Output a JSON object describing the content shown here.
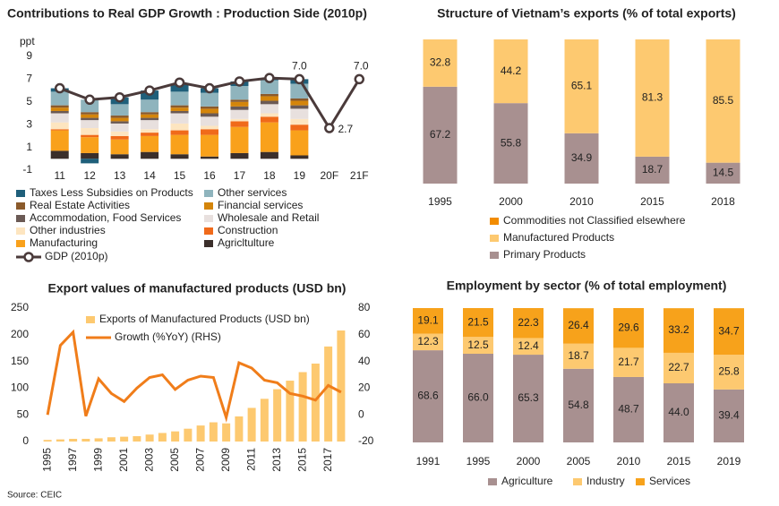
{
  "chart_data": [
    {
      "type": "bar",
      "stacked": true,
      "title": "Contributions to Real GDP Growth : Production Side (2010p)",
      "y_label": "ppt",
      "categories": [
        "11",
        "12",
        "13",
        "14",
        "15",
        "16",
        "17",
        "18",
        "19",
        "20F",
        "21F"
      ],
      "ylim": [
        -1,
        9
      ],
      "yticks": [
        -1,
        1,
        3,
        5,
        7,
        9
      ],
      "series": [
        {
          "name": "Agricltulture",
          "color": "#3b2f2b",
          "values": [
            0.7,
            0.5,
            0.4,
            0.6,
            0.4,
            0.2,
            0.5,
            0.6,
            0.3,
            null,
            null
          ]
        },
        {
          "name": "Manufacturing",
          "color": "#f9a11b",
          "values": [
            1.8,
            1.4,
            1.3,
            1.4,
            1.7,
            1.9,
            2.3,
            2.6,
            2.2,
            null,
            null
          ]
        },
        {
          "name": "Construction",
          "color": "#f06a1a",
          "values": [
            0.1,
            0.2,
            0.3,
            0.3,
            0.4,
            0.5,
            0.5,
            0.5,
            0.5,
            null,
            null
          ]
        },
        {
          "name": "Other industries",
          "color": "#fde5c0",
          "values": [
            0.6,
            0.6,
            0.4,
            0.3,
            0.6,
            0.3,
            0.2,
            0.3,
            0.5,
            null,
            null
          ]
        },
        {
          "name": "Wholesale and Retail",
          "color": "#e8e0de",
          "values": [
            0.8,
            0.7,
            0.7,
            0.8,
            0.9,
            0.8,
            0.8,
            0.8,
            0.9,
            null,
            null
          ]
        },
        {
          "name": "Accommodation, Food Services",
          "color": "#6b5a55",
          "values": [
            0.2,
            0.2,
            0.2,
            0.2,
            0.2,
            0.3,
            0.3,
            0.3,
            0.3,
            null,
            null
          ]
        },
        {
          "name": "Financial services",
          "color": "#d4850a",
          "values": [
            0.3,
            0.3,
            0.3,
            0.3,
            0.3,
            0.4,
            0.4,
            0.4,
            0.4,
            null,
            null
          ]
        },
        {
          "name": "Real Estate Activities",
          "color": "#8b5a2b",
          "values": [
            0.2,
            0.2,
            0.2,
            0.2,
            0.2,
            0.2,
            0.2,
            0.2,
            0.2,
            null,
            null
          ]
        },
        {
          "name": "Other services",
          "color": "#8fb4bd",
          "values": [
            1.2,
            1.1,
            1.0,
            1.1,
            1.2,
            1.2,
            1.2,
            1.2,
            1.3,
            null,
            null
          ]
        },
        {
          "name": "Taxes Less Subsidies on Products",
          "color": "#1f5f7a",
          "values": [
            0.3,
            -0.4,
            0.6,
            0.8,
            0.7,
            0.4,
            0.4,
            0.2,
            0.4,
            null,
            null
          ]
        },
        {
          "name": "GDP (2010p)",
          "type": "line",
          "marker": "circle",
          "color": "#4a3a3a",
          "values": [
            6.2,
            5.2,
            5.4,
            6.0,
            6.7,
            6.2,
            6.8,
            7.1,
            7.0,
            2.7,
            7.0
          ],
          "value_labels": [
            null,
            null,
            null,
            null,
            null,
            null,
            null,
            null,
            "7.0",
            "2.7",
            "7.0"
          ]
        }
      ]
    },
    {
      "type": "bar",
      "stacked": true,
      "title": "Structure of Vietnam’s exports (% of total exports)",
      "categories": [
        "1995",
        "2000",
        "2010",
        "2015",
        "2018"
      ],
      "ylim": [
        0,
        100
      ],
      "series": [
        {
          "name": "Primary Products",
          "color": "#a89090",
          "labels": true,
          "values": [
            67.2,
            55.8,
            34.9,
            18.7,
            14.5
          ]
        },
        {
          "name": "Manufactured Products",
          "color": "#fdc970",
          "labels": true,
          "values": [
            32.8,
            44.2,
            65.1,
            81.3,
            85.5
          ]
        },
        {
          "name": "Commodities not Classified elsewhere",
          "color": "#f28c00",
          "values": [
            0,
            0,
            0,
            0,
            0
          ]
        }
      ]
    },
    {
      "type": "bar",
      "title": "Export values of manufactured products (USD bn)",
      "categories": [
        "1995",
        null,
        "1997",
        null,
        "1999",
        null,
        "2001",
        null,
        "2003",
        null,
        "2005",
        null,
        "2007",
        null,
        "2009",
        null,
        "2011",
        null,
        "2013",
        null,
        "2015",
        null,
        "2017",
        null
      ],
      "ylim": [
        0,
        250
      ],
      "yticks": [
        0,
        50,
        100,
        150,
        200,
        250
      ],
      "y2lim": [
        -20,
        80
      ],
      "y2ticks": [
        -20,
        0,
        20,
        40,
        60,
        80
      ],
      "series": [
        {
          "name": "Exports of Manufactured Products (USD bn)",
          "color": "#fdc970",
          "values": [
            3,
            4,
            5,
            5,
            6,
            8,
            9,
            10,
            13,
            16,
            19,
            24,
            30,
            36,
            34,
            47,
            63,
            80,
            98,
            114,
            130,
            146,
            178,
            208
          ]
        },
        {
          "name": "Growth (%YoY) (RHS)",
          "type": "line",
          "axis": "y2",
          "color": "#f07d1a",
          "values": [
            0,
            52,
            62,
            -1,
            27,
            16,
            10,
            20,
            28,
            30,
            19,
            26,
            29,
            28,
            -2,
            39,
            35,
            26,
            24,
            16,
            14,
            11,
            22,
            17
          ]
        }
      ]
    },
    {
      "type": "bar",
      "stacked": true,
      "title": "Employment by sector (% of total employment)",
      "categories": [
        "1991",
        "1995",
        "2000",
        "2005",
        "2010",
        "2015",
        "2019"
      ],
      "ylim": [
        0,
        100
      ],
      "series": [
        {
          "name": "Agriculture",
          "color": "#a89090",
          "labels": true,
          "values": [
            68.6,
            66.0,
            65.3,
            54.8,
            48.7,
            44.0,
            39.4
          ],
          "value_labels": [
            "68.6",
            "66.0",
            "65.3",
            "54.8",
            "48.7",
            "44.0",
            "39.4"
          ]
        },
        {
          "name": "Industry",
          "color": "#fdc970",
          "labels": true,
          "values": [
            12.3,
            12.5,
            12.4,
            18.7,
            21.7,
            22.7,
            25.8
          ]
        },
        {
          "name": "Services",
          "color": "#f7a21b",
          "labels": true,
          "values": [
            19.1,
            21.5,
            22.3,
            26.4,
            29.6,
            33.2,
            34.7
          ]
        }
      ]
    }
  ],
  "source": "Source: CEIC"
}
